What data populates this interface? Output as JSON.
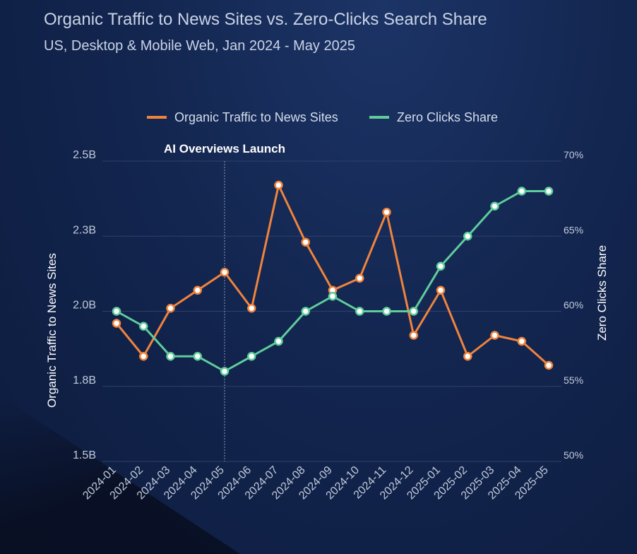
{
  "chart_data": {
    "type": "line",
    "title": "Organic Traffic to News Sites vs. Zero-Clicks Search Share",
    "subtitle": "US, Desktop & Mobile Web, Jan 2024 - May 2025",
    "x": [
      "2024-01",
      "2024-02",
      "2024-03",
      "2024-04",
      "2024-05",
      "2024-06",
      "2024-07",
      "2024-08",
      "2024-09",
      "2024-10",
      "2024-11",
      "2024-12",
      "2025-01",
      "2025-02",
      "2025-03",
      "2025-04",
      "2025-05"
    ],
    "ylabel_left": "Organic Traffic to News Sites",
    "ylabel_right": "Zero Clicks Share",
    "yticks_left": [
      "2.5B",
      "2.3B",
      "2.0B",
      "1.8B",
      "1.5B"
    ],
    "ylim_left": [
      1.5,
      2.5
    ],
    "yticks_right": [
      "70%",
      "65%",
      "60%",
      "55%",
      "50%"
    ],
    "ylim_right": [
      50,
      70
    ],
    "legend_position": "top-center",
    "grid": true,
    "series": [
      {
        "name": "Organic Traffic to News Sites",
        "color": "#f0843c",
        "axis": "left",
        "values": [
          1.96,
          1.85,
          2.01,
          2.07,
          2.13,
          2.01,
          2.42,
          2.23,
          2.07,
          2.11,
          2.33,
          1.92,
          2.07,
          1.85,
          1.92,
          1.9,
          1.82
        ]
      },
      {
        "name": "Zero Clicks Share",
        "color": "#5fcd9c",
        "axis": "right",
        "values": [
          60.0,
          59.0,
          57.0,
          57.0,
          56.0,
          57.0,
          58.0,
          60.0,
          61.0,
          60.0,
          60.0,
          60.0,
          63.0,
          65.0,
          67.0,
          68.0,
          68.0
        ]
      }
    ],
    "annotations": [
      {
        "label": "AI Overviews Launch",
        "x": "2024-05"
      }
    ]
  }
}
